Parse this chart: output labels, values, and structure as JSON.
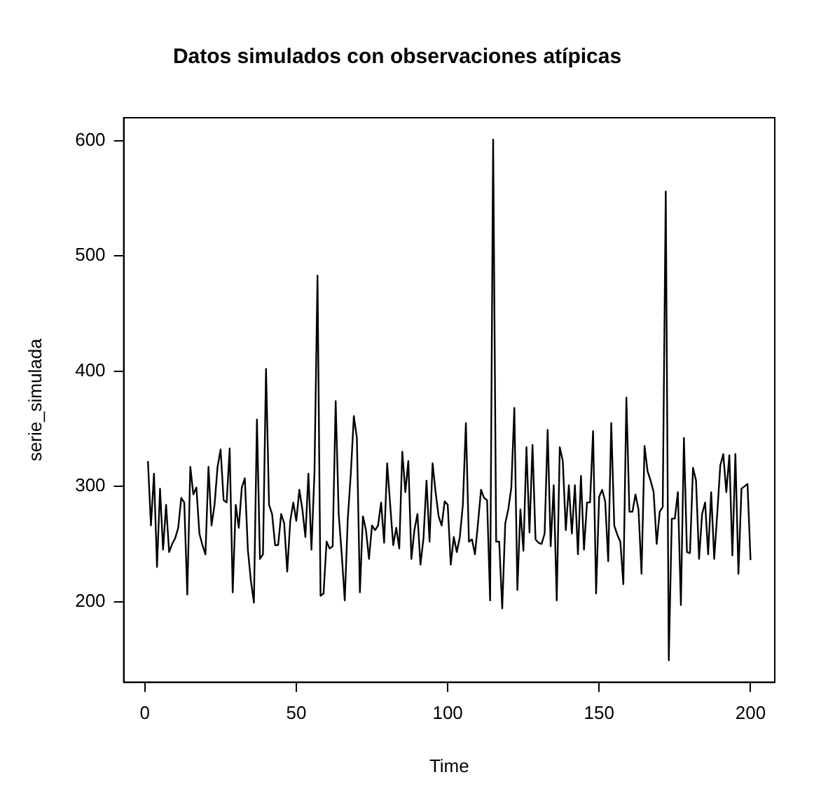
{
  "chart_data": {
    "type": "line",
    "title": "Datos simulados con observaciones atípicas",
    "xlabel": "Time",
    "ylabel": "serie_simulada",
    "x": [
      1,
      2,
      3,
      4,
      5,
      6,
      7,
      8,
      9,
      10,
      11,
      12,
      13,
      14,
      15,
      16,
      17,
      18,
      19,
      20,
      21,
      22,
      23,
      24,
      25,
      26,
      27,
      28,
      29,
      30,
      31,
      32,
      33,
      34,
      35,
      36,
      37,
      38,
      39,
      40,
      41,
      42,
      43,
      44,
      45,
      46,
      47,
      48,
      49,
      50,
      51,
      52,
      53,
      54,
      55,
      56,
      57,
      58,
      59,
      60,
      61,
      62,
      63,
      64,
      65,
      66,
      67,
      68,
      69,
      70,
      71,
      72,
      73,
      74,
      75,
      76,
      77,
      78,
      79,
      80,
      81,
      82,
      83,
      84,
      85,
      86,
      87,
      88,
      89,
      90,
      91,
      92,
      93,
      94,
      95,
      96,
      97,
      98,
      99,
      100,
      101,
      102,
      103,
      104,
      105,
      106,
      107,
      108,
      109,
      110,
      111,
      112,
      113,
      114,
      115,
      116,
      117,
      118,
      119,
      120,
      121,
      122,
      123,
      124,
      125,
      126,
      127,
      128,
      129,
      130,
      131,
      132,
      133,
      134,
      135,
      136,
      137,
      138,
      139,
      140,
      141,
      142,
      143,
      144,
      145,
      146,
      147,
      148,
      149,
      150,
      151,
      152,
      153,
      154,
      155,
      156,
      157,
      158,
      159,
      160,
      161,
      162,
      163,
      164,
      165,
      166,
      167,
      168,
      169,
      170,
      171,
      172,
      173,
      174,
      175,
      176,
      177,
      178,
      179,
      180,
      181,
      182,
      183,
      184,
      185,
      186,
      187,
      188,
      189,
      190,
      191,
      192,
      193,
      194,
      195,
      196,
      197,
      198,
      199,
      200
    ],
    "values": [
      322,
      266,
      311,
      230,
      298,
      245,
      284,
      243,
      250,
      255,
      264,
      290,
      286,
      206,
      317,
      293,
      299,
      259,
      249,
      241,
      317,
      266,
      284,
      317,
      332,
      288,
      286,
      333,
      208,
      284,
      264,
      299,
      307,
      245,
      218,
      199,
      358,
      237,
      241,
      402,
      284,
      276,
      249,
      249,
      276,
      268,
      226,
      270,
      286,
      270,
      297,
      280,
      256,
      311,
      245,
      312,
      483,
      205,
      207,
      252,
      246,
      248,
      374,
      276,
      241,
      201,
      272,
      311,
      361,
      342,
      208,
      274,
      262,
      237,
      266,
      262,
      266,
      286,
      251,
      320,
      284,
      249,
      264,
      246,
      330,
      295,
      322,
      237,
      262,
      276,
      232,
      255,
      305,
      252,
      320,
      295,
      274,
      266,
      287,
      284,
      232,
      256,
      243,
      256,
      284,
      355,
      252,
      254,
      241,
      268,
      297,
      290,
      288,
      201,
      601,
      252,
      252,
      194,
      268,
      280,
      299,
      368,
      210,
      280,
      244,
      334,
      260,
      336,
      254,
      251,
      250,
      259,
      349,
      248,
      301,
      201,
      334,
      322,
      262,
      301,
      259,
      301,
      241,
      309,
      245,
      286,
      286,
      348,
      207,
      291,
      297,
      287,
      235,
      355,
      266,
      258,
      252,
      215,
      377,
      278,
      278,
      293,
      280,
      224,
      335,
      313,
      305,
      295,
      250,
      278,
      282,
      556,
      149,
      272,
      272,
      295,
      197,
      342,
      243,
      242,
      316,
      305,
      237,
      276,
      286,
      241,
      295,
      237,
      276,
      318,
      328,
      295,
      327,
      240,
      328,
      224,
      298,
      300,
      302,
      236
    ],
    "color": "#000000",
    "marker": "none",
    "line_style": "solid",
    "xlim": [
      -7,
      208
    ],
    "xticks": [
      0,
      50,
      100,
      150,
      200
    ],
    "ylim": [
      130,
      620
    ],
    "yticks": [
      200,
      300,
      400,
      500,
      600
    ]
  }
}
